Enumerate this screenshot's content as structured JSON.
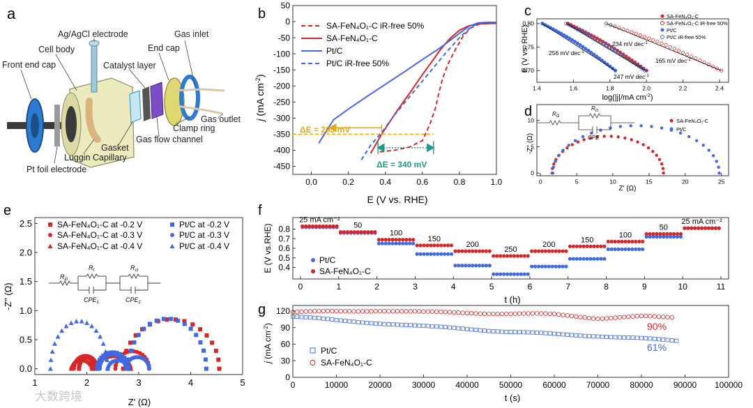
{
  "colors": {
    "red": "#d62728",
    "blue": "#4169e1",
    "orange": "#e6a817",
    "teal": "#1a9b8c",
    "axis": "#333333",
    "cell_body": "#ecebbf",
    "end_cap": "#2e7cd1",
    "electrode": "#d9b47e"
  },
  "panel_a": {
    "label": "a",
    "labels": {
      "ref_electrode": "Ag/AgCl electrode",
      "gas_inlet": "Gas inlet",
      "cell_body": "Cell body",
      "end_cap": "End cap",
      "catalyst_layer": "Catalyst layer",
      "front_end_cap": "Front end cap",
      "gas_outlet": "Gas outlet",
      "clamp_ring": "Clamp ring",
      "gas_flow_channel": "Gas flow channel",
      "gasket": "Gasket",
      "luggin": "Luggin Capillary",
      "pt_foil": "Pt foil electrode"
    }
  },
  "chart_data": [
    {
      "id": "b",
      "panel_label": "b",
      "type": "line",
      "xlabel": "E (V vs. RHE)",
      "ylabel_j": "j",
      "ylabel_units": " (mA cm",
      "ylabel_sup": "-2",
      "ylabel_close": ")",
      "xlim": [
        -0.1,
        1.0
      ],
      "ylim": [
        -475,
        50
      ],
      "xticks": [
        "0.0",
        "0.2",
        "0.4",
        "0.6",
        "0.8",
        "1.0"
      ],
      "xtick_values": [
        0.0,
        0.2,
        0.4,
        0.6,
        0.8,
        1.0
      ],
      "yticks": [
        "50",
        "0",
        "-50",
        "-100",
        "-150",
        "-200",
        "-250",
        "-300",
        "-350",
        "-400",
        "-450"
      ],
      "ytick_values": [
        50,
        0,
        -50,
        -100,
        -150,
        -200,
        -250,
        -300,
        -350,
        -400,
        -450
      ],
      "series": [
        {
          "name": "SA-FeN4O1-C iR-free 50%",
          "legend": "SA-FeN₄O₁-C iR-free 50%",
          "color": "red",
          "dash": true,
          "x": [
            0.37,
            0.45,
            0.53,
            0.6,
            0.64,
            0.67,
            0.69,
            0.71,
            0.74,
            0.78,
            0.82,
            0.86,
            0.9,
            0.95,
            1.0
          ],
          "y": [
            -405,
            -400,
            -390,
            -370,
            -320,
            -270,
            -220,
            -175,
            -130,
            -85,
            -45,
            -20,
            -9,
            -4,
            -3
          ]
        },
        {
          "name": "SA-FeN4O1-C",
          "legend": "SA-FeN₄O₁-C",
          "color": "red",
          "dash": false,
          "x": [
            0.32,
            0.38,
            0.46,
            0.54,
            0.6,
            0.65,
            0.7,
            0.75,
            0.8,
            0.85,
            0.9,
            0.95,
            1.0
          ],
          "y": [
            -410,
            -350,
            -280,
            -215,
            -165,
            -125,
            -85,
            -52,
            -27,
            -13,
            -7,
            -6,
            -5
          ]
        },
        {
          "name": "Pt/C",
          "legend": "Pt/C",
          "color": "blue",
          "dash": false,
          "x": [
            0.04,
            0.12,
            0.2,
            0.3,
            0.4,
            0.5,
            0.6,
            0.7,
            0.78,
            0.85,
            0.9,
            0.95,
            1.0
          ],
          "y": [
            -378,
            -305,
            -272,
            -233,
            -195,
            -157,
            -118,
            -80,
            -45,
            -15,
            -4,
            -2,
            -2
          ]
        },
        {
          "name": "Pt/C iR-free 50%",
          "legend": "Pt/C iR-free 50%",
          "color": "blue",
          "dash": true,
          "x": [
            0.27,
            0.32,
            0.38,
            0.45,
            0.55,
            0.65,
            0.73,
            0.8,
            0.86,
            0.9,
            0.95,
            1.0
          ],
          "y": [
            -430,
            -385,
            -345,
            -290,
            -220,
            -150,
            -95,
            -50,
            -18,
            -6,
            -3,
            -2
          ]
        }
      ],
      "annotations": {
        "delta_295": "ΔE = 295 mV",
        "delta_340": "ΔE = 340 mV",
        "ref_current": -350
      }
    },
    {
      "id": "c",
      "panel_label": "c",
      "type": "scatter",
      "xlabel": "log(|j|/mA cm",
      "xlabel_sup": "-2",
      "xlabel_close": ")",
      "ylabel": "E (V vs. RHE)",
      "xlim": [
        1.4,
        2.45
      ],
      "ylim": [
        0.675,
        0.81
      ],
      "xticks": [
        "1.4",
        "1.6",
        "1.8",
        "2.0",
        "2.2",
        "2.4"
      ],
      "xtick_values": [
        1.4,
        1.6,
        1.8,
        2.0,
        2.2,
        2.4
      ],
      "yticks": [
        "0.80",
        "0.75",
        "0.70"
      ],
      "ytick_values": [
        0.8,
        0.75,
        0.7
      ],
      "series": [
        {
          "name": "SA-FeN4O1-C",
          "legend": "SA-FeN₄O₁-C",
          "color": "red",
          "filled": true,
          "x0": 1.57,
          "x1": 2.0,
          "y0": 0.8,
          "y1": 0.7
        },
        {
          "name": "SA-FeN4O1-C iR-free 50%",
          "legend": "SA-FeN₄O₁-C iR-free 50%",
          "color": "red",
          "filled": false,
          "x0": 1.78,
          "x1": 2.41,
          "y0": 0.8,
          "y1": 0.7
        },
        {
          "name": "Pt/C",
          "legend": "Pt/C",
          "color": "blue",
          "filled": true,
          "x0": 1.43,
          "x1": 1.83,
          "y0": 0.8,
          "y1": 0.7
        },
        {
          "name": "Pt/C iR-free 50%",
          "legend": "Pt/C iR-free 50%",
          "color": "blue",
          "filled": false,
          "x0": 1.56,
          "x1": 1.99,
          "y0": 0.8,
          "y1": 0.7
        }
      ],
      "annotations": {
        "tafel_256": "256 mV dec",
        "tafel_234": "234 mV dec",
        "tafel_247": "247 mV dec",
        "tafel_165": "165 mV dec",
        "sup": "-1"
      }
    },
    {
      "id": "d",
      "panel_label": "d",
      "type": "scatter",
      "xlabel": "Z' (Ω)",
      "ylabel": "-Z'' (Ω)",
      "xlim": [
        -0.5,
        26
      ],
      "ylim": [
        -0.5,
        13
      ],
      "xticks": [
        "0",
        "5",
        "10",
        "15",
        "20",
        "25"
      ],
      "xtick_values": [
        0,
        5,
        10,
        15,
        20,
        25
      ],
      "yticks": [
        "0",
        "5",
        "10"
      ],
      "ytick_values": [
        0,
        5,
        10
      ],
      "series": [
        {
          "name": "SA-FeN4O1-C",
          "legend": "SA-FeN₄O₁-C",
          "color": "red",
          "center": 9.3,
          "radius": 7.7,
          "height": 7.0
        },
        {
          "name": "Pt/C",
          "legend": "Pt/C",
          "color": "blue",
          "center": 13.2,
          "radius": 11.5,
          "height": 9.0
        }
      ],
      "circuit": {
        "r_omega": "R",
        "r_omega_sub": "Ω",
        "r_ct": "R",
        "r_ct_sub": "ct",
        "cpe": "CPE"
      }
    },
    {
      "id": "e",
      "panel_label": "e",
      "type": "scatter",
      "xlabel": "Z' (Ω)",
      "ylabel": "-Z'' (Ω)",
      "xlim": [
        1,
        5
      ],
      "ylim": [
        -0.1,
        2.6
      ],
      "xticks": [
        "1",
        "2",
        "3",
        "4",
        "5"
      ],
      "xtick_values": [
        1,
        2,
        3,
        4,
        5
      ],
      "yticks": [
        "0.0",
        "0.5",
        "1.0",
        "1.5",
        "2.0",
        "2.5"
      ],
      "ytick_values": [
        0.0,
        0.5,
        1.0,
        1.5,
        2.0,
        2.5
      ],
      "series": [
        {
          "name": "SA-FeN4O1-C at -0.2 V",
          "legend": "SA-FeN₄O₁-C at -0.2 V",
          "color": "red",
          "marker": "square",
          "arcs": [
            [
              1.85,
              2.15,
              0.2
            ],
            [
              2.7,
              4.55,
              0.85
            ]
          ]
        },
        {
          "name": "SA-FeN4O1-C at -0.3 V",
          "legend": "SA-FeN₄O₁-C at -0.3 V",
          "color": "red",
          "marker": "circle",
          "arcs": [
            [
              1.75,
              2.2,
              0.22
            ],
            [
              2.55,
              3.2,
              0.3
            ]
          ]
        },
        {
          "name": "SA-FeN4O1-C at -0.4 V",
          "legend": "SA-FeN₄O₁-C at -0.4 V",
          "color": "red",
          "marker": "triangle",
          "arcs": [
            [
              1.7,
              2.1,
              0.15
            ],
            [
              2.2,
              2.85,
              0.22
            ]
          ]
        },
        {
          "name": "Pt/C at -0.2 V",
          "legend": "Pt/C at -0.2 V",
          "color": "blue",
          "marker": "square",
          "arcs": [
            [
              2.2,
              2.8,
              0.28
            ],
            [
              2.8,
              4.3,
              0.86
            ]
          ]
        },
        {
          "name": "Pt/C at -0.3 V",
          "legend": "Pt/C at -0.3 V",
          "color": "blue",
          "marker": "circle",
          "arcs": [
            [
              2.25,
              2.75,
              0.25
            ],
            [
              2.75,
              3.2,
              0.2
            ]
          ]
        },
        {
          "name": "Pt/C at -0.4 V",
          "legend": "Pt/C at -0.4 V",
          "color": "blue",
          "marker": "triangle",
          "arcs": [
            [
              1.3,
              2.4,
              0.82
            ],
            [
              2.4,
              2.8,
              0.15
            ]
          ]
        }
      ],
      "circuit": {
        "r_omega": "R",
        "r_omega_sub": "Ω",
        "r_f": "R",
        "r_f_sub": "f",
        "r_ct": "R",
        "r_ct_sub": "ct",
        "cpe1": "CPE",
        "cpe1_sub": "1",
        "cpe2": "CPE",
        "cpe2_sub": "2"
      }
    },
    {
      "id": "f",
      "panel_label": "f",
      "type": "scatter",
      "xlabel": "t (h)",
      "ylabel": "E (V vs.RHE)",
      "xlim": [
        -0.2,
        11.2
      ],
      "ylim": [
        0.28,
        0.92
      ],
      "xticks": [
        "0",
        "1",
        "2",
        "3",
        "4",
        "5",
        "6",
        "7",
        "8",
        "9",
        "10",
        "11"
      ],
      "xtick_values": [
        0,
        1,
        2,
        3,
        4,
        5,
        6,
        7,
        8,
        9,
        10,
        11
      ],
      "yticks": [
        "0.4",
        "0.5",
        "0.6",
        "0.7",
        "0.8"
      ],
      "ytick_values": [
        0.4,
        0.5,
        0.6,
        0.7,
        0.8
      ],
      "step_labels": [
        "25 mA cm⁻²",
        "50",
        "100",
        "150",
        "200",
        "250",
        "200",
        "150",
        "100",
        "50",
        "25 mA cm⁻²"
      ],
      "series": [
        {
          "name": "Pt/C",
          "legend": "Pt/C",
          "color": "blue",
          "levels": [
            0.82,
            0.76,
            0.65,
            0.54,
            0.42,
            0.33,
            0.41,
            0.49,
            0.59,
            0.72,
            0.81
          ]
        },
        {
          "name": "SA-FeN4O1-C",
          "legend": "SA-FeN₄O₁-C",
          "color": "red",
          "levels": [
            0.83,
            0.77,
            0.69,
            0.63,
            0.57,
            0.52,
            0.57,
            0.62,
            0.67,
            0.75,
            0.81
          ]
        }
      ]
    },
    {
      "id": "g",
      "panel_label": "g",
      "type": "scatter",
      "xlabel": "t (s)",
      "ylabel_j": "j",
      "ylabel_units": " (mA cm",
      "ylabel_sup": "-2",
      "ylabel_close": ")",
      "xlim": [
        0,
        100000
      ],
      "ylim": [
        0,
        130
      ],
      "xticks": [
        "0",
        "10000",
        "20000",
        "30000",
        "40000",
        "50000",
        "60000",
        "70000",
        "80000",
        "90000",
        "100000"
      ],
      "xtick_values": [
        0,
        10000,
        20000,
        30000,
        40000,
        50000,
        60000,
        70000,
        80000,
        90000,
        100000
      ],
      "yticks": [
        "0",
        "30",
        "60",
        "90",
        "120"
      ],
      "ytick_values": [
        0,
        30,
        60,
        90,
        120
      ],
      "series": [
        {
          "name": "Pt/C",
          "legend": "Pt/C",
          "color": "blue",
          "marker": "square",
          "x_end": 88000,
          "x": [
            0,
            10000,
            20000,
            30000,
            40000,
            50000,
            60000,
            70000,
            80000,
            88000
          ],
          "y": [
            110,
            103,
            98,
            92,
            88,
            82,
            78,
            75,
            70,
            66
          ]
        },
        {
          "name": "SA-FeN4O1-C",
          "legend": "SA-FeN₄O₁-C",
          "color": "red",
          "marker": "circle",
          "x_end": 87000,
          "x": [
            0,
            10000,
            20000,
            30000,
            40000,
            50000,
            60000,
            70000,
            80000,
            87000
          ],
          "y": [
            118,
            119,
            121,
            118,
            117,
            115,
            114,
            107,
            110,
            108
          ]
        }
      ],
      "annotations": {
        "retention_red": "90%",
        "retention_blue": "61%"
      }
    }
  ],
  "watermark": "大数跨境"
}
